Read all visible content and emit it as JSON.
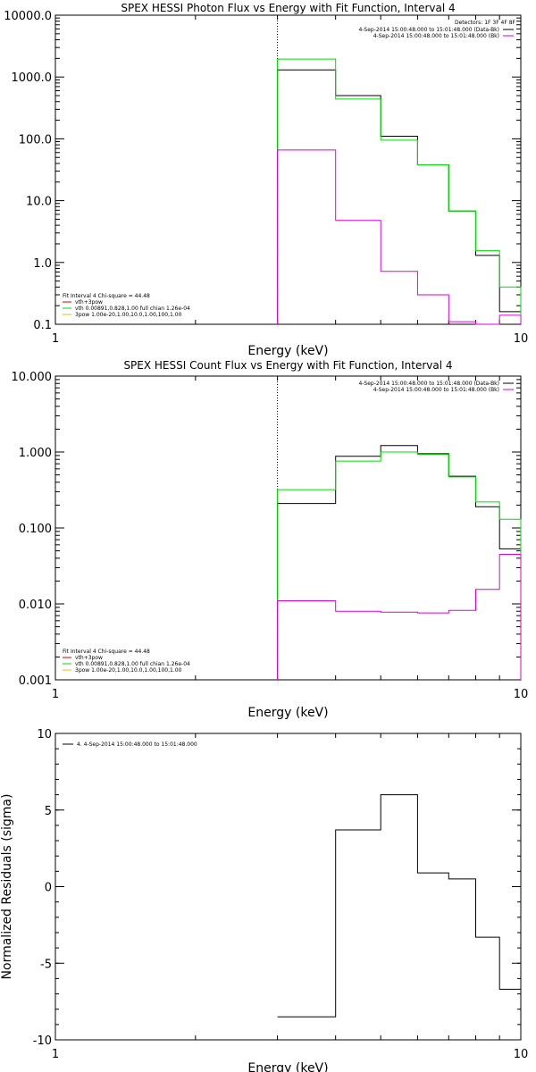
{
  "chart_data": [
    {
      "type": "line",
      "title": "SPEX HESSI Photon Flux vs Energy with Fit Function, Interval 4",
      "xlabel": "Energy (keV)",
      "ylabel": "",
      "xscale": "log",
      "yscale": "log",
      "xlim": [
        1,
        10
      ],
      "ylim": [
        0.1,
        10000
      ],
      "x_ticks": [
        {
          "v": 1,
          "label": "1"
        },
        {
          "v": 10,
          "label": "10"
        }
      ],
      "y_ticks": [
        {
          "v": 0.1,
          "label": "0.1"
        },
        {
          "v": 1,
          "label": "1.0"
        },
        {
          "v": 10,
          "label": "10.0"
        },
        {
          "v": 100,
          "label": "100.0"
        },
        {
          "v": 1000,
          "label": "1000.0"
        },
        {
          "v": 10000,
          "label": "10000.0"
        }
      ],
      "edges": [
        3.0,
        4.0,
        5.0,
        6.0,
        7.0,
        8.0,
        9.0,
        10.0
      ],
      "vline": 3.0,
      "series": [
        {
          "color": "#000000",
          "values": [
            1300,
            500,
            110,
            38,
            6.8,
            1.3,
            0.16
          ]
        },
        {
          "color": "#00dd00",
          "values": [
            1950,
            440,
            95,
            38,
            6.8,
            1.55,
            0.4
          ]
        },
        {
          "color": "#dd00dd",
          "values": [
            66,
            4.8,
            0.72,
            0.3,
            0.11,
            0.1,
            0.14
          ]
        }
      ],
      "legend_top": {
        "header": "Detectors: 1F 3F 4F 8F",
        "entries": [
          {
            "text": "4-Sep-2014 15:00:48.000 to 15:01:48.000 (Data-Bk)",
            "color": "#000000"
          },
          {
            "text": "4-Sep-2014 15:00:48.000 to 15:01:48.000 (Bk)",
            "color": "#dd00dd"
          }
        ]
      },
      "legend_bottom": {
        "header": "Fit Interval 4   Chi-square = 44.48",
        "entries": [
          {
            "text": "vth+3pow",
            "color": "#dd0000"
          },
          {
            "text": "vth 0.00891,0.828,1.00  full chian 1.26e-04",
            "color": "#00dd00"
          },
          {
            "text": "3pow 1.00e-20,1.00,10.0,1.00,100,1.00",
            "color": "#cccc00"
          }
        ]
      }
    },
    {
      "type": "line",
      "title": "SPEX HESSI Count Flux vs Energy with Fit Function, Interval 4",
      "xlabel": "Energy (keV)",
      "ylabel": "",
      "xscale": "log",
      "yscale": "log",
      "xlim": [
        1,
        10
      ],
      "ylim": [
        0.001,
        10
      ],
      "x_ticks": [
        {
          "v": 1,
          "label": "1"
        },
        {
          "v": 10,
          "label": "10"
        }
      ],
      "y_ticks": [
        {
          "v": 0.001,
          "label": "0.001"
        },
        {
          "v": 0.01,
          "label": "0.010"
        },
        {
          "v": 0.1,
          "label": "0.100"
        },
        {
          "v": 1,
          "label": "1.000"
        },
        {
          "v": 10,
          "label": "10.000"
        }
      ],
      "edges": [
        3.0,
        4.0,
        5.0,
        6.0,
        7.0,
        8.0,
        9.0,
        10.0
      ],
      "vline": 3.0,
      "series": [
        {
          "color": "#000000",
          "values": [
            0.21,
            0.88,
            1.22,
            0.95,
            0.48,
            0.19,
            0.053
          ]
        },
        {
          "color": "#00dd00",
          "values": [
            0.32,
            0.76,
            1.0,
            0.93,
            0.47,
            0.22,
            0.13
          ]
        },
        {
          "color": "#dd00dd",
          "values": [
            0.011,
            0.008,
            0.0078,
            0.0076,
            0.0082,
            0.0155,
            0.045
          ]
        }
      ],
      "legend_top": {
        "header": "",
        "entries": [
          {
            "text": "4-Sep-2014 15:00:48.000 to 15:01:48.000 (Data-Bk)",
            "color": "#000000"
          },
          {
            "text": "4-Sep-2014 15:00:48.000 to 15:01:48.000 (Bk)",
            "color": "#dd00dd"
          }
        ]
      },
      "legend_bottom": {
        "header": "Fit Interval 4   Chi-square = 44.48",
        "entries": [
          {
            "text": "vth+3pow",
            "color": "#dd0000"
          },
          {
            "text": "vth 0.00891,0.828,1.00  full chian 1.26e-04",
            "color": "#00dd00"
          },
          {
            "text": "3pow 1.00e-20,1.00,10.0,1.00,100,1.00",
            "color": "#cccc00"
          }
        ]
      }
    },
    {
      "type": "line",
      "title": "",
      "xlabel": "Energy (keV)",
      "ylabel": "Normalized Residuals (sigma)",
      "xscale": "log",
      "yscale": "linear",
      "xlim": [
        1,
        10
      ],
      "ylim": [
        -10,
        10
      ],
      "x_ticks": [
        {
          "v": 1,
          "label": "1"
        },
        {
          "v": 10,
          "label": "10"
        }
      ],
      "y_ticks": [
        {
          "v": -10,
          "label": "-10"
        },
        {
          "v": -5,
          "label": "-5"
        },
        {
          "v": 0,
          "label": "0"
        },
        {
          "v": 5,
          "label": "5"
        },
        {
          "v": 10,
          "label": "10"
        }
      ],
      "edges": [
        3.0,
        4.0,
        5.0,
        6.0,
        7.0,
        8.0,
        9.0,
        10.0
      ],
      "vline": null,
      "series": [
        {
          "color": "#000000",
          "values": [
            -8.5,
            3.7,
            6.0,
            0.9,
            0.5,
            -3.3,
            -6.7
          ]
        }
      ],
      "legend_top": {
        "header": "",
        "entries": [
          {
            "text": "4.  4-Sep-2014 15:00:48.000 to 15:01:48.000",
            "color": "#000000"
          }
        ]
      },
      "legend_bottom": null
    }
  ]
}
